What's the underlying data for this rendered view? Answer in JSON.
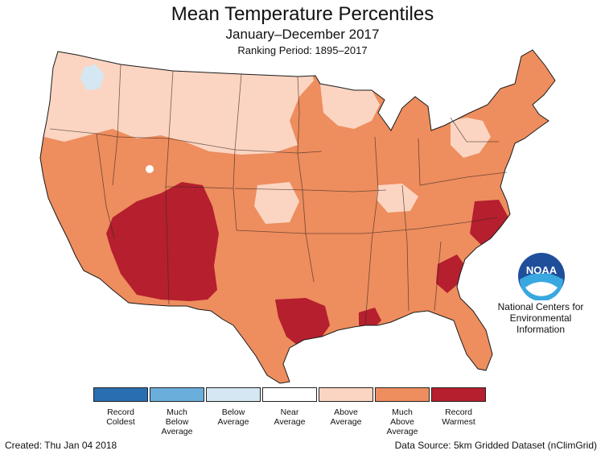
{
  "title": "Mean Temperature Percentiles",
  "subtitle": "January–December 2017",
  "ranking_period": "Ranking Period: 1895–2017",
  "logo": {
    "text": "NOAA",
    "icon": "noaa-logo-icon"
  },
  "agency": [
    "National Centers for",
    "Environmental",
    "Information"
  ],
  "legend": [
    {
      "lines": [
        "Record",
        "Coldest"
      ],
      "color": "#2a6eb2"
    },
    {
      "lines": [
        "Much",
        "Below",
        "Average"
      ],
      "color": "#6aaedb"
    },
    {
      "lines": [
        "Below",
        "Average"
      ],
      "color": "#d5e7f2"
    },
    {
      "lines": [
        "Near",
        "Average"
      ],
      "color": "#ffffff"
    },
    {
      "lines": [
        "Above",
        "Average"
      ],
      "color": "#fbd5c2"
    },
    {
      "lines": [
        "Much",
        "Above",
        "Average"
      ],
      "color": "#ee8d5e"
    },
    {
      "lines": [
        "Record",
        "Warmest"
      ],
      "color": "#b51f2e"
    }
  ],
  "created": "Created: Thu Jan 04 2018",
  "data_source": "Data Source: 5km Gridded Dataset (nClimGrid)"
}
